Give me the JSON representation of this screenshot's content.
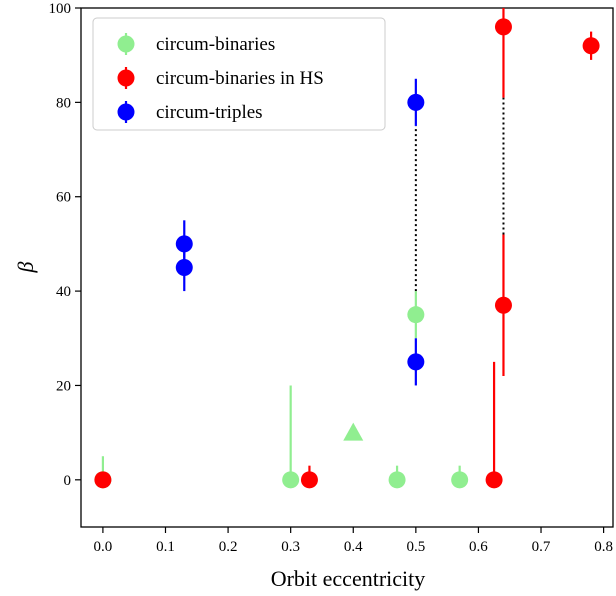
{
  "chart_data": {
    "type": "scatter",
    "xlabel": "Orbit eccentricity",
    "ylabel": "β",
    "xlim": [
      -0.035,
      0.815
    ],
    "ylim": [
      -10,
      100
    ],
    "xticks": [
      0.0,
      0.1,
      0.2,
      0.3,
      0.4,
      0.5,
      0.6,
      0.7,
      0.8
    ],
    "xtick_labels": [
      "0.0",
      "0.1",
      "0.2",
      "0.3",
      "0.4",
      "0.5",
      "0.6",
      "0.7",
      "0.8"
    ],
    "yticks": [
      0,
      20,
      40,
      60,
      80,
      100
    ],
    "ytick_labels": [
      "0",
      "20",
      "40",
      "60",
      "80",
      "100"
    ],
    "grid": false,
    "legend_position": "top-left",
    "series": [
      {
        "name": "circum-binaries",
        "color": "#90ee90",
        "marker": "circle",
        "points": [
          {
            "x": 0.0,
            "y": 0,
            "ylow": 0,
            "yhigh": 5
          },
          {
            "x": 0.3,
            "y": 0,
            "ylow": 0,
            "yhigh": 20
          },
          {
            "x": 0.47,
            "y": 0,
            "ylow": 0,
            "yhigh": 3
          },
          {
            "x": 0.5,
            "y": 35,
            "ylow": 30,
            "yhigh": 40
          },
          {
            "x": 0.57,
            "y": 0,
            "ylow": 0,
            "yhigh": 3
          }
        ]
      },
      {
        "name": "circum-binaries in HS",
        "color": "#ff0000",
        "marker": "circle",
        "points": [
          {
            "x": 0.0,
            "y": 0,
            "ylow": 0,
            "yhigh": 0
          },
          {
            "x": 0.33,
            "y": 0,
            "ylow": 0,
            "yhigh": 3
          },
          {
            "x": 0.625,
            "y": 0,
            "ylow": 0,
            "yhigh": 25
          },
          {
            "x": 0.64,
            "y": 37,
            "ylow": 22,
            "yhigh": 52
          },
          {
            "x": 0.64,
            "y": 96,
            "ylow": 81,
            "yhigh": 100
          },
          {
            "x": 0.78,
            "y": 92,
            "ylow": 89,
            "yhigh": 95
          }
        ]
      },
      {
        "name": "circum-triples",
        "color": "#0000ff",
        "marker": "circle",
        "points": [
          {
            "x": 0.13,
            "y": 50,
            "ylow": 45,
            "yhigh": 55
          },
          {
            "x": 0.13,
            "y": 45,
            "ylow": 40,
            "yhigh": 50
          },
          {
            "x": 0.5,
            "y": 80,
            "ylow": 75,
            "yhigh": 85
          },
          {
            "x": 0.5,
            "y": 25,
            "ylow": 20,
            "yhigh": 30
          }
        ]
      }
    ],
    "extra_markers": [
      {
        "x": 0.4,
        "y": 10,
        "marker": "triangle",
        "color": "#90ee90"
      }
    ],
    "dotted_links": [
      {
        "x": 0.5,
        "y1": 40,
        "y2": 75
      },
      {
        "x": 0.64,
        "y1": 52,
        "y2": 81
      }
    ]
  }
}
